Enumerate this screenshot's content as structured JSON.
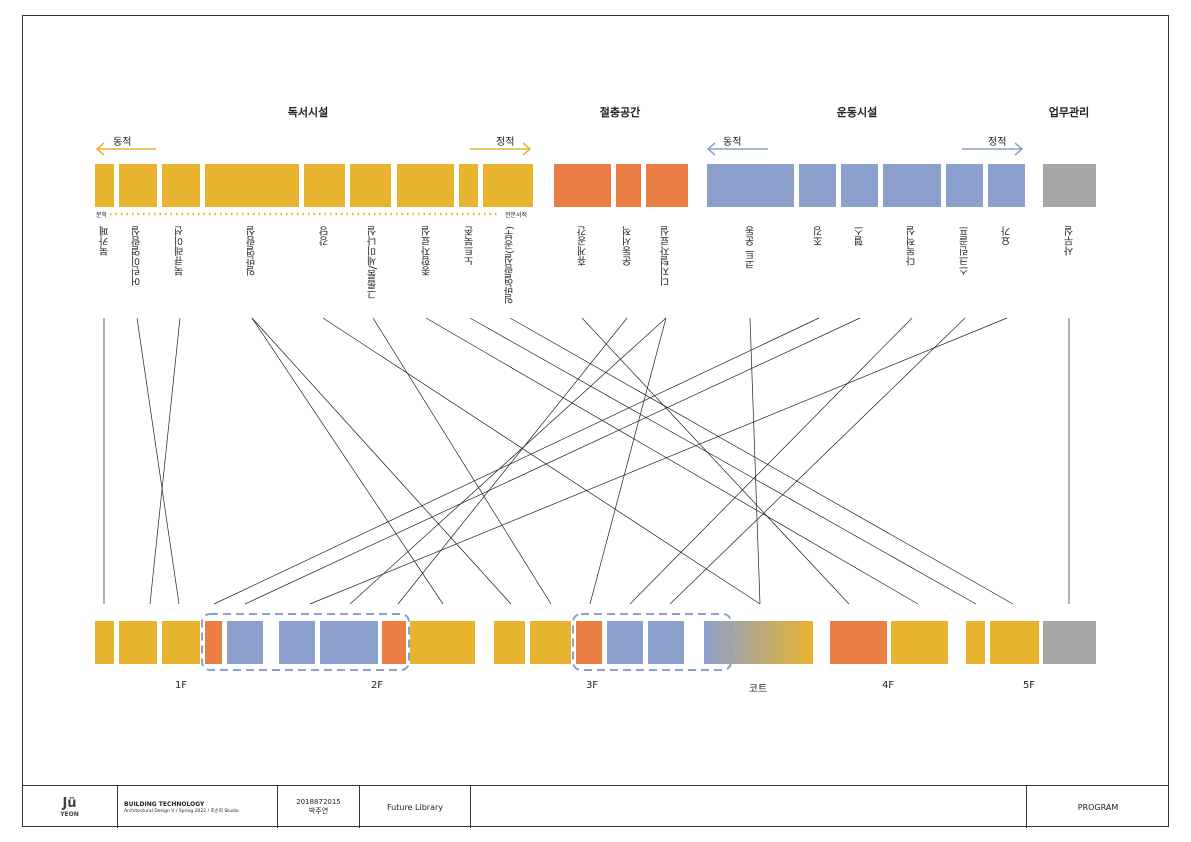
{
  "categories": [
    {
      "label": "독서시설"
    },
    {
      "label": "절충공간"
    },
    {
      "label": "운동시설"
    },
    {
      "label": "업무관리"
    }
  ],
  "arrows": {
    "reading_dynamic": "동적",
    "reading_static": "정적",
    "sports_dynamic": "동적",
    "sports_static": "정적"
  },
  "axis_labels": {
    "left": "문학",
    "right": "전문서적"
  },
  "colors": {
    "reading": "#E8B32E",
    "mixed": "#EB7E45",
    "sports": "#8BA0CD",
    "office": "#A7A7A9"
  },
  "programs": {
    "reading": [
      "북카페",
      "어린이열람실",
      "북큐레이션",
      "일반열람실",
      "강당",
      "그룹룸/세미나실",
      "종합자료실",
      "노트북존",
      "일반열람실(공부)"
    ],
    "mixed": [
      "휴게공간",
      "운동서적",
      "디지털자료실"
    ],
    "sports": [
      "코트 운동",
      "조깅",
      "헬스",
      "다목적실",
      "스크린골프",
      "요가"
    ],
    "office": [
      "사무실"
    ]
  },
  "floors": [
    "1F",
    "2F",
    "3F",
    "코트",
    "4F",
    "5F"
  ],
  "footer": {
    "logo_top": "Jü",
    "logo_bottom": "YEON",
    "course_title": "BUILDING TECHNOLOGY",
    "course_sub": "Architectural Design V / Spring 2022 / 조순희 Studio",
    "student_id": "2018872015",
    "student_name": "박주연",
    "project": "Future Library",
    "sheet": "PROGRAM"
  }
}
